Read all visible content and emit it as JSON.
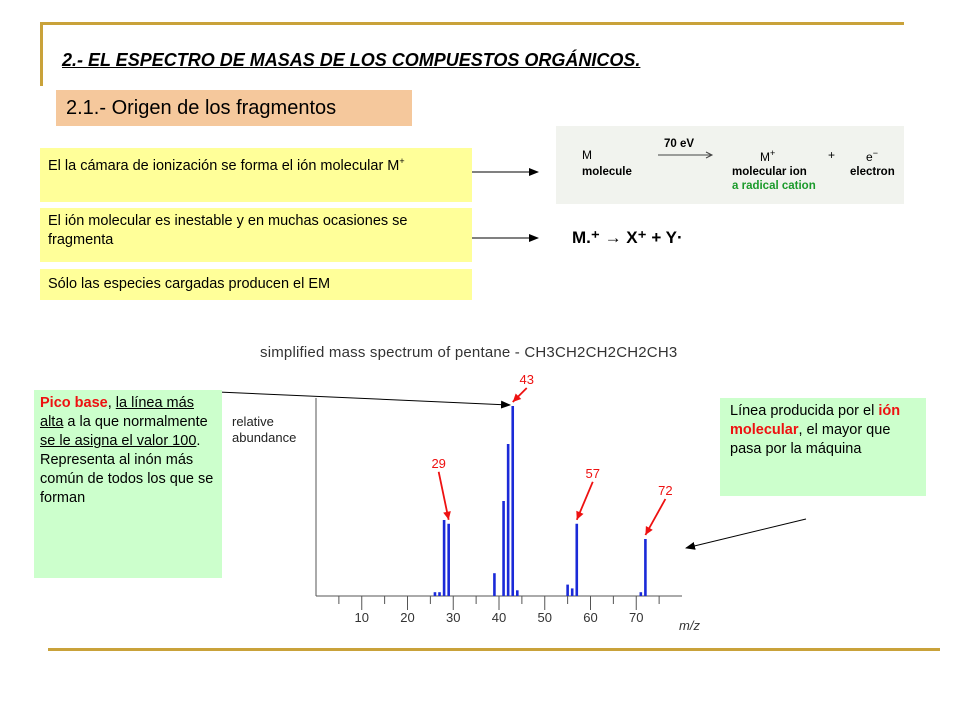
{
  "title": "2.- EL ESPECTRO DE MASAS DE LOS COMPUESTOS ORGÁNICOS.",
  "subtitle": "2.1.- Origen de los fragmentos",
  "notes": [
    "El la cámara de ionización se forma el ión molecular M",
    "El ión molecular es inestable y en muchas ocasiones se fragmenta",
    "Sólo las especies cargadas producen el EM"
  ],
  "note1_sup": "+",
  "ionization": {
    "m": "M",
    "molecule": "molecule",
    "energy": "70 eV",
    "mplus": "M",
    "mplus_sup": "+",
    "molecular_ion": "molecular ion",
    "radical_cation": "a radical cation",
    "plus": "+",
    "e": "e",
    "e_sup": "−",
    "electron": "electron"
  },
  "formula": "M.⁺ → X⁺ + Y·",
  "left_box": {
    "part1": "Pico base",
    "part2": ", ",
    "part3": "la línea más alta",
    "part4": " a la que normalmente ",
    "part5": "se le asigna el valor 100",
    "part6": ". Representa al inón más común de todos los que se forman"
  },
  "right_box": {
    "part1": "Línea producida por el ",
    "part2": "ión molecular",
    "part3": ", el mayor que pasa por la máquina"
  },
  "chart_data": {
    "type": "bar",
    "title": "simplified mass spectrum of pentane  -  CH3CH2CH2CH2CH3",
    "xlabel": "m/z",
    "ylabel": "relative abundance",
    "xlim": [
      0,
      80
    ],
    "x_ticks": [
      10,
      20,
      30,
      40,
      50,
      60,
      70
    ],
    "ylim": [
      0,
      100
    ],
    "x": [
      26,
      27,
      28,
      29,
      39,
      41,
      42,
      43,
      44,
      55,
      56,
      57,
      71,
      72
    ],
    "values": [
      2,
      2,
      40,
      38,
      12,
      50,
      80,
      100,
      3,
      6,
      4,
      38,
      2,
      30
    ],
    "annotations": [
      {
        "label": "29",
        "x": 29
      },
      {
        "label": "43",
        "x": 43
      },
      {
        "label": "57",
        "x": 57
      },
      {
        "label": "72",
        "x": 72
      }
    ],
    "bar_color": "#1a2ad8",
    "annotation_color": "#ee1111"
  }
}
